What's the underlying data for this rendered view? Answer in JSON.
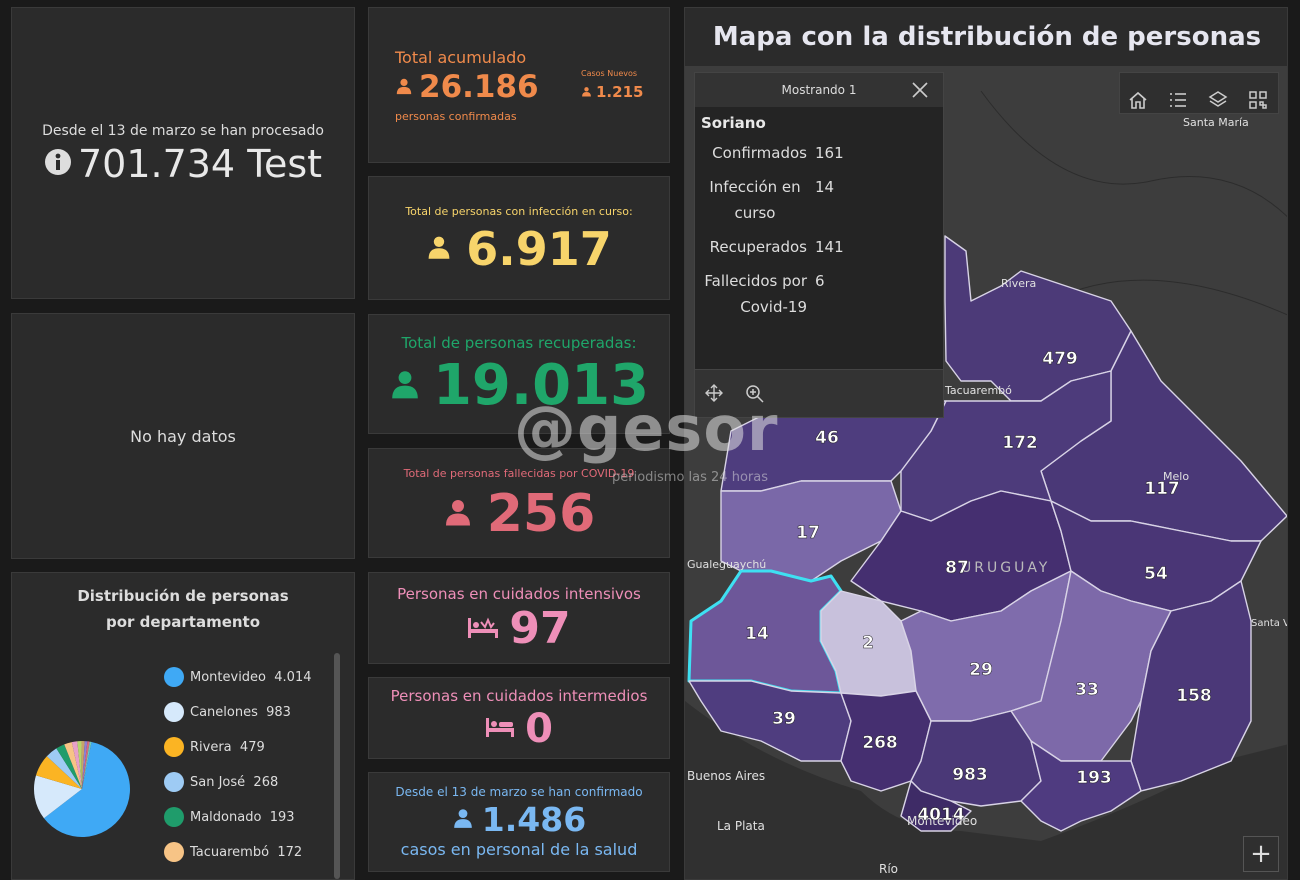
{
  "tests": {
    "caption": "Desde el 13 de marzo se han procesado",
    "value": "701.734 Test"
  },
  "no_data": "No hay datos",
  "accumulated": {
    "title": "Total acumulado",
    "value": "26.186",
    "subtitle": "personas confirmadas",
    "new_label": "Casos Nuevos",
    "new_value": "1.215",
    "color": "#f08a4b"
  },
  "active": {
    "title": "Total de personas con infección en curso:",
    "value": "6.917",
    "color": "#f7d46b"
  },
  "recovered": {
    "title": "Total de personas recuperadas:",
    "value": "19.013",
    "color": "#1fa66a"
  },
  "deaths": {
    "title": "Total de personas fallecidas por COVID-19",
    "value": "256",
    "color": "#e06a78"
  },
  "icu": {
    "title": "Personas en cuidados intensivos",
    "value": "97",
    "color": "#ee8fb8"
  },
  "intermediate": {
    "title": "Personas en cuidados intermedios",
    "value": "0",
    "color": "#ee8fb8"
  },
  "health_staff": {
    "caption": "Desde el 13 de marzo se han confirmado",
    "value": "1.486",
    "subtitle": "casos en personal de la salud",
    "color": "#7ab8f2"
  },
  "distribution": {
    "title": "Distribución de personas por departamento",
    "items": [
      {
        "label": "Montevideo",
        "value": "4.014",
        "color": "#3fa9f5"
      },
      {
        "label": "Canelones",
        "value": "983",
        "color": "#d6e9fb"
      },
      {
        "label": "Rivera",
        "value": "479",
        "color": "#fbb423"
      },
      {
        "label": "San José",
        "value": "268",
        "color": "#9ecbf4"
      },
      {
        "label": "Maldonado",
        "value": "193",
        "color": "#1f9c6b"
      },
      {
        "label": "Tacuarembó",
        "value": "172",
        "color": "#f7c486"
      }
    ]
  },
  "map": {
    "title": "Mapa con la distribución de personas",
    "country_label": "URUGUAY",
    "place_labels": [
      "Santa María",
      "Rivera",
      "Tacuarembó",
      "Melo",
      "Santa Vitória do Palmar",
      "La Plata",
      "Montevideo",
      "Río",
      "Buenos Aires",
      "Gualeguaychú"
    ],
    "department_values": [
      "479",
      "46",
      "172",
      "117",
      "17",
      "87",
      "54",
      "14",
      "2",
      "29",
      "33",
      "158",
      "39",
      "268",
      "983",
      "193",
      "4014"
    ],
    "zoom_in_label": "+"
  },
  "popup": {
    "header": "Mostrando 1",
    "name": "Soriano",
    "rows": [
      {
        "label": "Confirmados",
        "value": "161"
      },
      {
        "label": "Infección en curso",
        "value": "14"
      },
      {
        "label": "Recuperados",
        "value": "141"
      },
      {
        "label": "Fallecidos por Covid-19",
        "value": "6"
      }
    ]
  },
  "watermark": {
    "brand": "@gesor",
    "tagline": "periodismo las 24 horas"
  },
  "icons": [
    "info-icon",
    "person-icon",
    "icu-bed-icon",
    "bed-icon",
    "home-icon",
    "list-icon",
    "layers-icon",
    "qr-icon",
    "close-icon",
    "move-icon",
    "zoom-icon"
  ]
}
